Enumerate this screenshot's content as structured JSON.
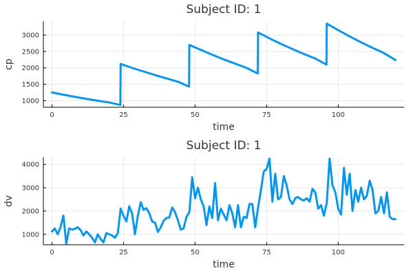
{
  "chart_data": [
    {
      "type": "line",
      "title": "Subject ID: 1",
      "xlabel": "time",
      "ylabel": "cp",
      "xlim": [
        -3,
        123
      ],
      "ylim": [
        800,
        3420
      ],
      "xticks": [
        0,
        25,
        50,
        75,
        100
      ],
      "xtick_labels": [
        "0",
        "25",
        "50",
        "75",
        "100"
      ],
      "yticks": [
        1000,
        1500,
        2000,
        2500,
        3000
      ],
      "ytick_labels": [
        "1000",
        "1500",
        "2000",
        "2500",
        "3000"
      ],
      "grid": true,
      "color": "#0095ef",
      "series": [
        {
          "x": [
            0,
            4,
            8,
            12,
            16,
            20,
            23.9,
            24,
            28,
            32,
            36,
            40,
            44,
            47.9,
            48,
            52,
            56,
            60,
            64,
            68,
            71.9,
            72,
            76,
            80,
            84,
            88,
            92,
            95.9,
            96,
            100,
            104,
            108,
            112,
            116,
            120
          ],
          "values": [
            1250,
            1182,
            1117,
            1056,
            999,
            945,
            870,
            2120,
            2000,
            1890,
            1780,
            1680,
            1580,
            1430,
            2700,
            2550,
            2400,
            2260,
            2130,
            2000,
            1830,
            3080,
            2900,
            2730,
            2575,
            2425,
            2285,
            2100,
            3350,
            3150,
            2960,
            2780,
            2610,
            2450,
            2240
          ]
        }
      ]
    },
    {
      "type": "line",
      "title": "Subject ID: 1",
      "xlabel": "time",
      "ylabel": "dv",
      "xlim": [
        -3,
        123
      ],
      "ylim": [
        550,
        4300
      ],
      "xticks": [
        0,
        25,
        50,
        75,
        100
      ],
      "xtick_labels": [
        "0",
        "25",
        "50",
        "75",
        "100"
      ],
      "yticks": [
        1000,
        2000,
        3000,
        4000
      ],
      "ytick_labels": [
        "1000",
        "2000",
        "3000",
        "4000"
      ],
      "grid": true,
      "color": "#0095ef",
      "series": [
        {
          "x": [
            0,
            1,
            2,
            3,
            4,
            5,
            6,
            7,
            8,
            9,
            10,
            11,
            12,
            13,
            14,
            15,
            16,
            17,
            18,
            19,
            20,
            21,
            22,
            23,
            24,
            25,
            26,
            27,
            28,
            29,
            30,
            31,
            32,
            33,
            34,
            35,
            36,
            37,
            38,
            39,
            40,
            41,
            42,
            43,
            44,
            45,
            46,
            47,
            48,
            49,
            50,
            51,
            52,
            53,
            54,
            55,
            56,
            57,
            58,
            59,
            60,
            61,
            62,
            63,
            64,
            65,
            66,
            67,
            68,
            69,
            70,
            71,
            72,
            73,
            74,
            75,
            76,
            77,
            78,
            79,
            80,
            81,
            82,
            83,
            84,
            85,
            86,
            87,
            88,
            89,
            90,
            91,
            92,
            93,
            94,
            95,
            96,
            97,
            98,
            99,
            100,
            101,
            102,
            103,
            104,
            105,
            106,
            107,
            108,
            109,
            110,
            111,
            112,
            113,
            114,
            115,
            116,
            117,
            118,
            119,
            120
          ],
          "values": [
            1120,
            1250,
            1000,
            1300,
            1800,
            600,
            1250,
            1200,
            1230,
            1300,
            1180,
            950,
            1120,
            1000,
            850,
            650,
            1000,
            800,
            650,
            1050,
            1000,
            950,
            850,
            1050,
            2100,
            1800,
            1550,
            2200,
            1900,
            1000,
            1800,
            2380,
            2050,
            2120,
            1900,
            1550,
            1500,
            1100,
            1300,
            1580,
            1700,
            1720,
            2150,
            1950,
            1600,
            1200,
            1250,
            1750,
            1950,
            3450,
            2550,
            3000,
            2500,
            2200,
            1400,
            2200,
            1700,
            3200,
            1600,
            2100,
            1850,
            1600,
            2250,
            1900,
            1300,
            2250,
            1300,
            1750,
            1700,
            2300,
            2300,
            1300,
            2150,
            2900,
            3700,
            3800,
            4250,
            2400,
            3600,
            2500,
            2600,
            3500,
            3100,
            2500,
            2300,
            2550,
            2600,
            2500,
            2450,
            2550,
            2400,
            2950,
            2800,
            2100,
            2250,
            1800,
            2350,
            4250,
            3100,
            2800,
            2100,
            1850,
            3850,
            2700,
            3600,
            2000,
            2900,
            2400,
            3000,
            2500,
            2650,
            3300,
            2900,
            1900,
            2000,
            2600,
            1900,
            2800,
            1750,
            1650,
            1650
          ]
        }
      ]
    }
  ]
}
